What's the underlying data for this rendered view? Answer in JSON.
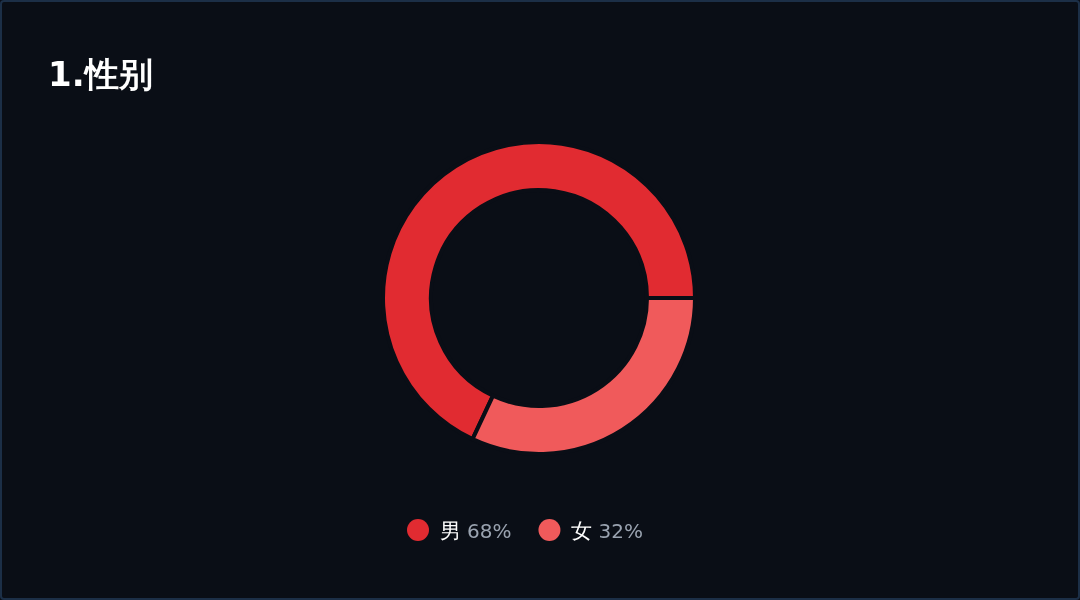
{
  "chart_data": {
    "type": "donut",
    "title": "1.性别",
    "categories": [
      "男",
      "女"
    ],
    "values": [
      68,
      32
    ],
    "colors": [
      "#e12b31",
      "#f05a5b"
    ],
    "value_labels": [
      "68%",
      "32%"
    ],
    "legend": "bottom"
  }
}
